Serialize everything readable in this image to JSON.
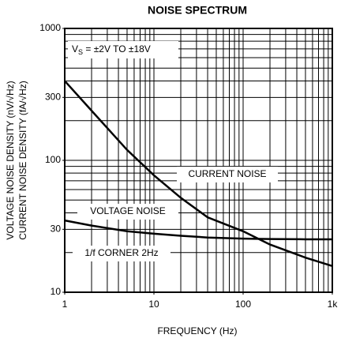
{
  "chart_data": {
    "type": "line",
    "title": "NOISE SPECTRUM",
    "xlabel": "FREQUENCY (Hz)",
    "ylabels": [
      "VOLTAGE NOISE DENSITY (nV/√Hz)",
      "CURRENT NOISE DENSITY (fA/√Hz)"
    ],
    "xscale": "log",
    "yscale": "log",
    "xlim": [
      1,
      1000
    ],
    "ylim": [
      10,
      1000
    ],
    "xticks": [
      1,
      10,
      100,
      {
        "value": 1000,
        "label": "1k"
      }
    ],
    "yticks": [
      10,
      30,
      100,
      300,
      1000
    ],
    "xgrid": [
      1,
      2,
      3,
      4,
      5,
      6,
      7,
      8,
      9,
      10,
      20,
      30,
      40,
      50,
      60,
      70,
      80,
      90,
      100,
      200,
      300,
      400,
      500,
      600,
      700,
      800,
      900,
      1000
    ],
    "ygrid": [
      10,
      20,
      30,
      40,
      50,
      60,
      70,
      80,
      90,
      100,
      200,
      300,
      400,
      500,
      600,
      700,
      800,
      900,
      1000
    ],
    "x": [
      1,
      2,
      5,
      10,
      20,
      40,
      100,
      200,
      500,
      1000
    ],
    "series": [
      {
        "name": "CURRENT NOISE",
        "color": "#000000",
        "values": [
          400,
          238,
          120,
          77,
          52,
          37,
          29,
          23,
          18.3,
          15.8
        ]
      },
      {
        "name": "VOLTAGE NOISE",
        "color": "#000000",
        "values": [
          35,
          32,
          29,
          27.8,
          26.8,
          26,
          25.5,
          25.3,
          25.2,
          25.2
        ]
      }
    ],
    "annotations": {
      "supply": [
        "V",
        "S",
        " = ±2V TO ±18V"
      ],
      "corner": "1/f CORNER 2Hz"
    }
  }
}
